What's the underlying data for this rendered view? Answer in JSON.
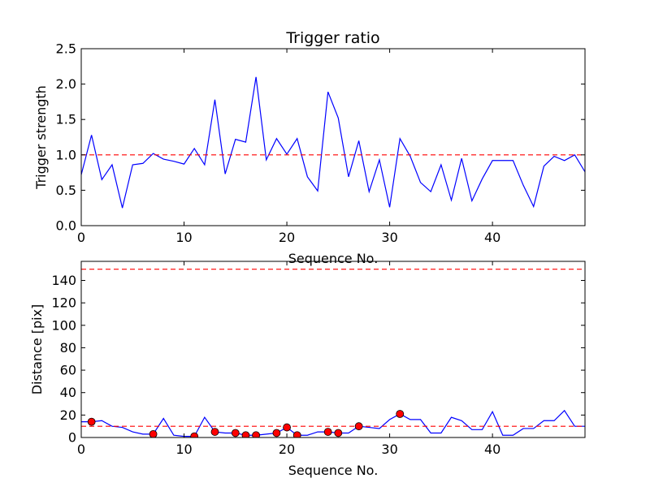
{
  "chart_data": [
    {
      "type": "line",
      "title": "Trigger ratio",
      "xlabel": "Sequence No.",
      "ylabel": "Trigger strength",
      "xlim": [
        0,
        49
      ],
      "ylim": [
        0,
        2.5
      ],
      "x_ticks": [
        0,
        10,
        20,
        30,
        40
      ],
      "x_tick_labels": [
        "0",
        "10",
        "20",
        "30",
        "40"
      ],
      "y_ticks": [
        0,
        0.5,
        1.0,
        1.5,
        2.0,
        2.5
      ],
      "y_tick_labels": [
        "0.0",
        "0.5",
        "1.0",
        "1.5",
        "2.0",
        "2.5"
      ],
      "grid": false,
      "series": [
        {
          "name": "trigger strength",
          "color": "#0000ff",
          "style": "solid",
          "x": [
            0,
            1,
            2,
            3,
            4,
            5,
            6,
            7,
            8,
            9,
            10,
            11,
            12,
            13,
            14,
            15,
            16,
            17,
            18,
            19,
            20,
            21,
            22,
            23,
            24,
            25,
            26,
            27,
            28,
            29,
            30,
            31,
            32,
            33,
            34,
            35,
            36,
            37,
            38,
            39,
            40,
            41,
            42,
            43,
            44,
            45,
            46,
            47,
            48,
            49
          ],
          "values": [
            0.72,
            1.28,
            0.65,
            0.86,
            0.25,
            0.86,
            0.88,
            1.02,
            0.94,
            0.91,
            0.87,
            1.09,
            0.86,
            1.78,
            0.73,
            1.22,
            1.18,
            2.1,
            0.93,
            1.23,
            1.01,
            1.23,
            0.69,
            0.49,
            1.89,
            1.52,
            0.69,
            1.2,
            0.48,
            0.93,
            0.26,
            1.23,
            0.98,
            0.61,
            0.48,
            0.86,
            0.36,
            0.95,
            0.35,
            0.66,
            0.92,
            0.92,
            0.92,
            0.57,
            0.27,
            0.84,
            0.98,
            0.92,
            1.0,
            0.76
          ]
        },
        {
          "name": "threshold",
          "color": "#ff0000",
          "style": "dashed",
          "x": [
            0,
            49
          ],
          "values": [
            1.0,
            1.0
          ]
        }
      ]
    },
    {
      "type": "line",
      "title": "",
      "xlabel": "Sequence No.",
      "ylabel": "Distance [pix]",
      "xlim": [
        0,
        49
      ],
      "ylim": [
        0,
        157
      ],
      "x_ticks": [
        0,
        10,
        20,
        30,
        40
      ],
      "x_tick_labels": [
        "0",
        "10",
        "20",
        "30",
        "40"
      ],
      "y_ticks": [
        0,
        20,
        40,
        60,
        80,
        100,
        120,
        140
      ],
      "y_tick_labels": [
        "0",
        "20",
        "40",
        "60",
        "80",
        "100",
        "120",
        "140"
      ],
      "grid": false,
      "series": [
        {
          "name": "distance",
          "color": "#0000ff",
          "style": "solid",
          "x": [
            0,
            1,
            2,
            3,
            4,
            5,
            6,
            7,
            8,
            9,
            10,
            11,
            12,
            13,
            14,
            15,
            16,
            17,
            18,
            19,
            20,
            21,
            22,
            23,
            24,
            25,
            26,
            27,
            28,
            29,
            30,
            31,
            32,
            33,
            34,
            35,
            36,
            37,
            38,
            39,
            40,
            41,
            42,
            43,
            44,
            45,
            46,
            47,
            48,
            49
          ],
          "values": [
            14,
            14,
            15,
            10,
            9,
            5,
            3,
            3,
            17,
            2,
            1,
            1,
            18,
            5,
            4,
            4,
            2,
            2,
            3,
            4,
            9,
            2,
            2,
            5,
            5,
            4,
            4,
            10,
            9,
            8,
            16,
            21,
            16,
            16,
            4,
            4,
            18,
            15,
            7,
            7,
            23,
            2,
            2,
            8,
            8,
            15,
            15,
            24,
            10,
            10
          ]
        },
        {
          "name": "triggered points",
          "color": "#ff0000",
          "style": "markers",
          "x": [
            1,
            7,
            11,
            13,
            15,
            16,
            17,
            19,
            20,
            21,
            24,
            25,
            27,
            31
          ],
          "values": [
            14,
            3,
            1,
            5,
            4,
            2,
            2,
            4,
            9,
            2,
            5,
            4,
            10,
            21
          ]
        },
        {
          "name": "lower threshold",
          "color": "#ff0000",
          "style": "dashed",
          "x": [
            0,
            49
          ],
          "values": [
            10,
            10
          ]
        },
        {
          "name": "upper threshold",
          "color": "#ff0000",
          "style": "dashed",
          "x": [
            0,
            49
          ],
          "values": [
            150,
            150
          ]
        }
      ]
    }
  ]
}
